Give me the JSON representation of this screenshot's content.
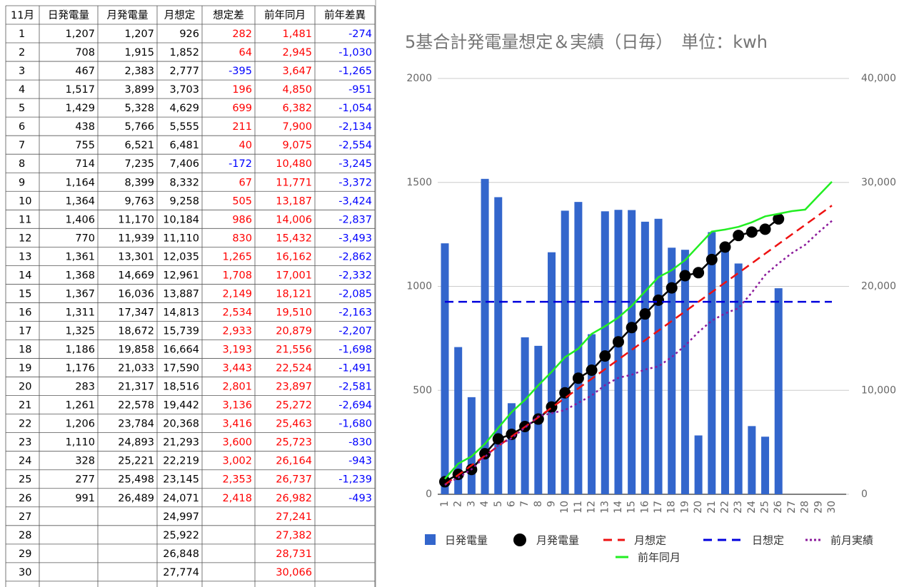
{
  "table": {
    "header": [
      "11月",
      "日発電量",
      "月発電量",
      "月想定",
      "想定差",
      "前年同月",
      "前年差異"
    ],
    "colors": {
      "positive": "#ff0000",
      "negative": "#0000ff"
    },
    "rows": [
      [
        "1",
        "1,207",
        "1,207",
        "926",
        "282",
        "1,481",
        "-274"
      ],
      [
        "2",
        "708",
        "1,915",
        "1,852",
        "64",
        "2,945",
        "-1,030"
      ],
      [
        "3",
        "467",
        "2,383",
        "2,777",
        "-395",
        "3,647",
        "-1,265"
      ],
      [
        "4",
        "1,517",
        "3,899",
        "3,703",
        "196",
        "4,850",
        "-951"
      ],
      [
        "5",
        "1,429",
        "5,328",
        "4,629",
        "699",
        "6,382",
        "-1,054"
      ],
      [
        "6",
        "438",
        "5,766",
        "5,555",
        "211",
        "7,900",
        "-2,134"
      ],
      [
        "7",
        "755",
        "6,521",
        "6,481",
        "40",
        "9,075",
        "-2,554"
      ],
      [
        "8",
        "714",
        "7,235",
        "7,406",
        "-172",
        "10,480",
        "-3,245"
      ],
      [
        "9",
        "1,164",
        "8,399",
        "8,332",
        "67",
        "11,771",
        "-3,372"
      ],
      [
        "10",
        "1,364",
        "9,763",
        "9,258",
        "505",
        "13,187",
        "-3,424"
      ],
      [
        "11",
        "1,406",
        "11,170",
        "10,184",
        "986",
        "14,006",
        "-2,837"
      ],
      [
        "12",
        "770",
        "11,939",
        "11,110",
        "830",
        "15,432",
        "-3,493"
      ],
      [
        "13",
        "1,361",
        "13,301",
        "12,035",
        "1,265",
        "16,162",
        "-2,862"
      ],
      [
        "14",
        "1,368",
        "14,669",
        "12,961",
        "1,708",
        "17,001",
        "-2,332"
      ],
      [
        "15",
        "1,367",
        "16,036",
        "13,887",
        "2,149",
        "18,121",
        "-2,085"
      ],
      [
        "16",
        "1,311",
        "17,347",
        "14,813",
        "2,534",
        "19,510",
        "-2,163"
      ],
      [
        "17",
        "1,325",
        "18,672",
        "15,739",
        "2,933",
        "20,879",
        "-2,207"
      ],
      [
        "18",
        "1,186",
        "19,858",
        "16,664",
        "3,193",
        "21,556",
        "-1,698"
      ],
      [
        "19",
        "1,176",
        "21,033",
        "17,590",
        "3,443",
        "22,524",
        "-1,491"
      ],
      [
        "20",
        "283",
        "21,317",
        "18,516",
        "2,801",
        "23,897",
        "-2,581"
      ],
      [
        "21",
        "1,261",
        "22,578",
        "19,442",
        "3,136",
        "25,272",
        "-2,694"
      ],
      [
        "22",
        "1,206",
        "23,784",
        "20,368",
        "3,416",
        "25,463",
        "-1,680"
      ],
      [
        "23",
        "1,110",
        "24,893",
        "21,293",
        "3,600",
        "25,723",
        "-830"
      ],
      [
        "24",
        "328",
        "25,221",
        "22,219",
        "3,002",
        "26,164",
        "-943"
      ],
      [
        "25",
        "277",
        "25,498",
        "23,145",
        "2,353",
        "26,737",
        "-1,239"
      ],
      [
        "26",
        "991",
        "26,489",
        "24,071",
        "2,418",
        "26,982",
        "-493"
      ],
      [
        "27",
        null,
        null,
        "24,997",
        null,
        "27,241",
        null
      ],
      [
        "28",
        null,
        null,
        "25,922",
        null,
        "27,382",
        null
      ],
      [
        "29",
        null,
        null,
        "26,848",
        null,
        "28,731",
        null
      ],
      [
        "30",
        null,
        null,
        "27,774",
        null,
        "30,066",
        null
      ]
    ]
  },
  "chart_data": {
    "type": "combo",
    "title": "5基合計発電量想定＆実績（日毎）　単位：kwh",
    "categories": [
      "1",
      "2",
      "3",
      "4",
      "5",
      "6",
      "7",
      "8",
      "9",
      "10",
      "11",
      "12",
      "13",
      "14",
      "15",
      "16",
      "17",
      "18",
      "19",
      "20",
      "21",
      "22",
      "23",
      "24",
      "25",
      "26",
      "27",
      "28",
      "29",
      "30"
    ],
    "ylim": [
      0,
      2000
    ],
    "yticks": [
      0,
      500,
      1000,
      1500,
      2000
    ],
    "y2lim": [
      0,
      40000
    ],
    "y2ticks": [
      0,
      {
        "value": 10000,
        "label": "10,000"
      },
      {
        "value": 20000,
        "label": "20,000"
      },
      {
        "value": 30000,
        "label": "30,000"
      },
      {
        "value": 40000,
        "label": "40,000"
      }
    ],
    "grid": true,
    "legend": "bottom",
    "series": [
      {
        "name": "日発電量",
        "type": "bar",
        "color": "#3366cc",
        "values": [
          1207,
          708,
          467,
          1517,
          1429,
          438,
          755,
          714,
          1164,
          1364,
          1406,
          770,
          1361,
          1368,
          1367,
          1311,
          1325,
          1186,
          1176,
          283,
          1261,
          1206,
          1110,
          328,
          277,
          991,
          null,
          null,
          null,
          null
        ]
      },
      {
        "name": "月発電量",
        "type": "line",
        "axis": "y2",
        "color": "#000000",
        "style": "solid",
        "marker": "circle",
        "values": [
          1207,
          1915,
          2383,
          3899,
          5328,
          5766,
          6521,
          7235,
          8399,
          9763,
          11170,
          11939,
          13301,
          14669,
          16036,
          17347,
          18672,
          19858,
          21033,
          21317,
          22578,
          23784,
          24893,
          25221,
          25498,
          26489,
          null,
          null,
          null,
          null
        ]
      },
      {
        "name": "月想定",
        "type": "line",
        "axis": "y2",
        "color": "#ee1111",
        "style": "dashed",
        "values": [
          926,
          1852,
          2777,
          3703,
          4629,
          5555,
          6481,
          7406,
          8332,
          9258,
          10184,
          11110,
          12035,
          12961,
          13887,
          14813,
          15739,
          16664,
          17590,
          18516,
          19442,
          20368,
          21293,
          22219,
          23145,
          24071,
          24997,
          25922,
          26848,
          27774
        ]
      },
      {
        "name": "日想定",
        "type": "line",
        "color": "#0000dd",
        "style": "dashed",
        "values": [
          926,
          926,
          926,
          926,
          926,
          926,
          926,
          926,
          926,
          926,
          926,
          926,
          926,
          926,
          926,
          926,
          926,
          926,
          926,
          926,
          926,
          926,
          926,
          926,
          926,
          926,
          926,
          926,
          926,
          926
        ]
      },
      {
        "name": "前月実績",
        "type": "line",
        "axis": "y2",
        "color": "#8b1a9b",
        "style": "dotted",
        "values": [
          900,
          1600,
          2400,
          3600,
          4700,
          5400,
          6400,
          7500,
          7800,
          8100,
          8800,
          9500,
          10500,
          11200,
          11500,
          12000,
          12300,
          13200,
          14300,
          15600,
          16700,
          17400,
          17900,
          19400,
          21100,
          22200,
          23200,
          24000,
          25200,
          26300
        ]
      },
      {
        "name": "前年同月",
        "type": "line",
        "axis": "y2",
        "color": "#22ee22",
        "style": "solid",
        "values": [
          1481,
          2945,
          3647,
          4850,
          6382,
          7900,
          9075,
          10480,
          11771,
          13187,
          14006,
          15432,
          16162,
          17001,
          18121,
          19510,
          20879,
          21556,
          22524,
          23897,
          25272,
          25463,
          25723,
          26164,
          26737,
          26982,
          27241,
          27382,
          28731,
          30066
        ]
      }
    ]
  }
}
